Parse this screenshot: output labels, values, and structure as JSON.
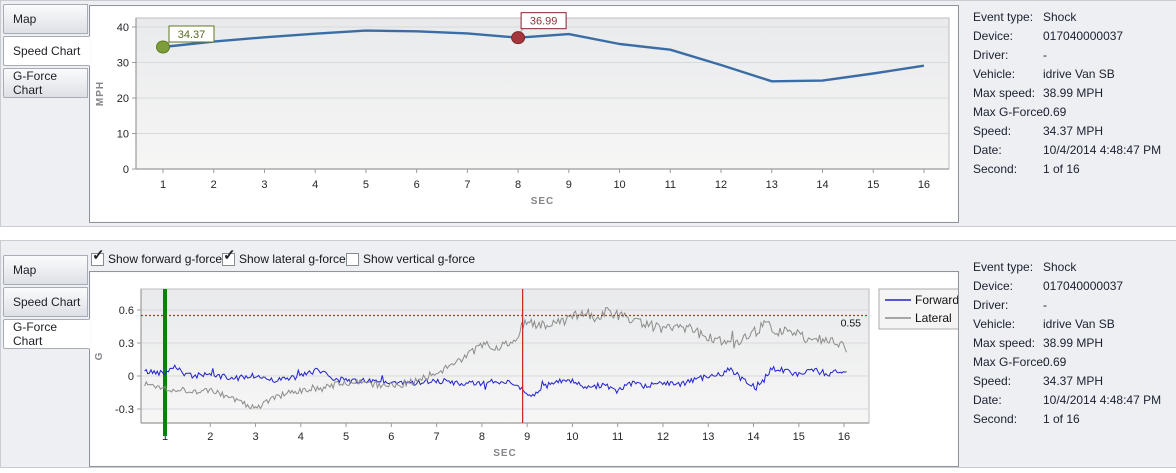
{
  "panels": {
    "top": {
      "tabs": [
        {
          "label": "Map",
          "selected": false
        },
        {
          "label": "Speed Chart",
          "selected": true
        },
        {
          "label": "G-Force Chart",
          "selected": false
        }
      ]
    },
    "bottom": {
      "tabs": [
        {
          "label": "Map",
          "selected": false
        },
        {
          "label": "Speed Chart",
          "selected": false
        },
        {
          "label": "G-Force Chart",
          "selected": true
        }
      ],
      "checkboxes": [
        {
          "label": "Show forward g-force",
          "checked": true
        },
        {
          "label": "Show lateral g-force",
          "checked": true
        },
        {
          "label": "Show vertical g-force",
          "checked": false
        }
      ]
    }
  },
  "event_info": [
    {
      "label": "Event type:",
      "value": "Shock"
    },
    {
      "label": "Device:",
      "value": "017040000037"
    },
    {
      "label": "Driver:",
      "value": "-"
    },
    {
      "label": "Vehicle:",
      "value": "idrive Van SB"
    },
    {
      "label": "Max speed:",
      "value": "38.99 MPH"
    },
    {
      "label": "Max G-Force:",
      "value": "0.69"
    },
    {
      "label": "Speed:",
      "value": "34.37 MPH"
    },
    {
      "label": "Date:",
      "value": "10/4/2014 4:48:47 PM"
    },
    {
      "label": "Second:",
      "value": "1 of 16"
    }
  ],
  "chart_data": [
    {
      "type": "line",
      "title": "Speed Chart",
      "xlabel": "SEC",
      "ylabel": "MPH",
      "x": [
        1,
        2,
        3,
        4,
        5,
        6,
        7,
        8,
        9,
        10,
        11,
        12,
        13,
        14,
        15,
        16
      ],
      "values": [
        34.37,
        35.9,
        37.1,
        38.1,
        38.99,
        38.8,
        38.2,
        36.99,
        38.0,
        35.2,
        33.6,
        29.3,
        24.7,
        24.9,
        26.9,
        29.1
      ],
      "ylim": [
        0,
        40
      ],
      "yticks": [
        0,
        10,
        20,
        30,
        40
      ],
      "xticks": [
        1,
        2,
        3,
        4,
        5,
        6,
        7,
        8,
        9,
        10,
        11,
        12,
        13,
        14,
        15,
        16
      ],
      "grid": "horizontal",
      "line_color": "#3a6da6",
      "markers": [
        {
          "x": 1,
          "y": 34.37,
          "label": "34.37",
          "fill": "#7d9d3b",
          "stroke": "#5f7a24",
          "text_color": "#51691c"
        },
        {
          "x": 8,
          "y": 36.99,
          "label": "36.99",
          "fill": "#a4373c",
          "stroke": "#7b272c",
          "text_color": "#8c3237"
        }
      ]
    },
    {
      "type": "line",
      "title": "G-Force Chart",
      "xlabel": "SEC",
      "ylabel": "G",
      "ylim": [
        -0.43,
        0.79
      ],
      "yticks": [
        -0.3,
        0,
        0.3,
        0.6
      ],
      "xticks": [
        1,
        2,
        3,
        4,
        5,
        6,
        7,
        8,
        9,
        10,
        11,
        12,
        13,
        14,
        15,
        16
      ],
      "grid": "horizontal",
      "legend": {
        "position": "right",
        "entries": [
          "Forward",
          "Lateral"
        ]
      },
      "threshold_line": {
        "y": 0.55,
        "label": "0.55",
        "color": "#e02020",
        "style": "dotted"
      },
      "vlines": [
        {
          "x": 1,
          "color": "#0c800c",
          "width": 4,
          "name": "event-second-marker-line"
        },
        {
          "x": 8.9,
          "color": "#d02020",
          "width": 1.2,
          "name": "event-trigger-line"
        }
      ],
      "series": [
        {
          "name": "Forward",
          "color": "#2222cc",
          "noise": 0.027,
          "seed": 42,
          "keypoints": [
            [
              0.55,
              0.04
            ],
            [
              1,
              0.03
            ],
            [
              1.2,
              0.1
            ],
            [
              1.5,
              0.0
            ],
            [
              2,
              0.01
            ],
            [
              2.5,
              -0.02
            ],
            [
              3,
              0.0
            ],
            [
              3.5,
              -0.04
            ],
            [
              4,
              0.0
            ],
            [
              4.4,
              0.06
            ],
            [
              4.7,
              -0.02
            ],
            [
              5,
              -0.04
            ],
            [
              5.5,
              -0.05
            ],
            [
              6,
              -0.06
            ],
            [
              6.5,
              -0.06
            ],
            [
              7,
              -0.04
            ],
            [
              7.5,
              -0.07
            ],
            [
              8,
              -0.07
            ],
            [
              8.5,
              -0.04
            ],
            [
              8.8,
              -0.1
            ],
            [
              9.1,
              -0.2
            ],
            [
              9.4,
              -0.1
            ],
            [
              9.7,
              -0.04
            ],
            [
              10,
              -0.05
            ],
            [
              10.3,
              -0.12
            ],
            [
              10.7,
              -0.07
            ],
            [
              11,
              -0.14
            ],
            [
              11.3,
              -0.07
            ],
            [
              11.6,
              -0.1
            ],
            [
              12,
              -0.05
            ],
            [
              12.4,
              -0.08
            ],
            [
              12.8,
              -0.02
            ],
            [
              13.2,
              0.0
            ],
            [
              13.5,
              0.06
            ],
            [
              13.8,
              -0.05
            ],
            [
              14.1,
              -0.12
            ],
            [
              14.4,
              0.08
            ],
            [
              14.7,
              0.04
            ],
            [
              15,
              0.02
            ],
            [
              15.3,
              0.07
            ],
            [
              15.6,
              0.0
            ],
            [
              16,
              0.06
            ]
          ]
        },
        {
          "name": "Lateral",
          "color": "#8c8c8c",
          "noise": 0.032,
          "seed": 1337,
          "keypoints": [
            [
              0.55,
              -0.07
            ],
            [
              1,
              -0.11
            ],
            [
              1.5,
              -0.13
            ],
            [
              2,
              -0.14
            ],
            [
              2.3,
              -0.17
            ],
            [
              2.6,
              -0.22
            ],
            [
              2.9,
              -0.29
            ],
            [
              3.1,
              -0.27
            ],
            [
              3.5,
              -0.18
            ],
            [
              4,
              -0.14
            ],
            [
              4.5,
              -0.11
            ],
            [
              5,
              -0.06
            ],
            [
              5.3,
              -0.04
            ],
            [
              5.6,
              -0.08
            ],
            [
              6,
              -0.09
            ],
            [
              6.4,
              -0.06
            ],
            [
              6.8,
              0.0
            ],
            [
              7.2,
              0.07
            ],
            [
              7.5,
              0.14
            ],
            [
              7.8,
              0.22
            ],
            [
              8.1,
              0.31
            ],
            [
              8.3,
              0.25
            ],
            [
              8.6,
              0.3
            ],
            [
              8.85,
              0.38
            ],
            [
              9.0,
              0.52
            ],
            [
              9.2,
              0.47
            ],
            [
              9.5,
              0.46
            ],
            [
              9.8,
              0.49
            ],
            [
              10,
              0.52
            ],
            [
              10.2,
              0.6
            ],
            [
              10.4,
              0.55
            ],
            [
              10.6,
              0.53
            ],
            [
              10.8,
              0.6
            ],
            [
              11,
              0.55
            ],
            [
              11.2,
              0.52
            ],
            [
              11.5,
              0.5
            ],
            [
              11.8,
              0.45
            ],
            [
              12,
              0.42
            ],
            [
              12.3,
              0.44
            ],
            [
              12.6,
              0.45
            ],
            [
              12.9,
              0.36
            ],
            [
              13.2,
              0.32
            ],
            [
              13.5,
              0.27
            ],
            [
              13.8,
              0.33
            ],
            [
              14.1,
              0.42
            ],
            [
              14.3,
              0.5
            ],
            [
              14.5,
              0.38
            ],
            [
              14.8,
              0.42
            ],
            [
              15,
              0.37
            ],
            [
              15.3,
              0.33
            ],
            [
              15.6,
              0.33
            ],
            [
              16,
              0.26
            ]
          ]
        }
      ]
    }
  ],
  "colors": {
    "panel_bg": "#edeff2",
    "plot_bg_top": "#e9eaec",
    "plot_bg_bottom": "#f6f6f5",
    "gridline": "#d8d9db",
    "axis": "#9b9b9b",
    "tick_text": "#26262b",
    "axis_title": "#85858a",
    "info_text": "#1b2130"
  }
}
